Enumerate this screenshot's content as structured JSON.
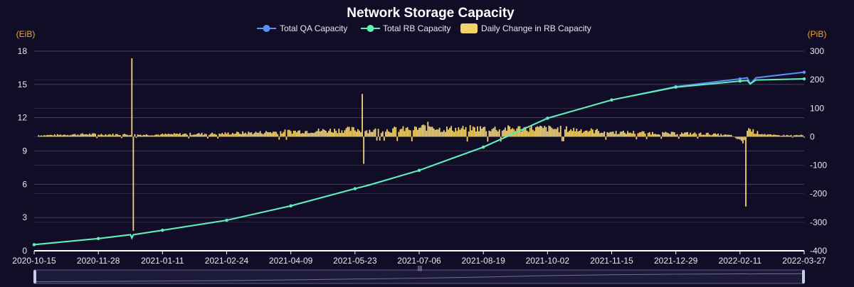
{
  "chart_data": {
    "type": "line",
    "title": "Network Storage Capacity",
    "y_left_unit": "(EiB)",
    "y_right_unit": "(PiB)",
    "y_left_range": [
      0,
      18
    ],
    "y_left_ticks": [
      0,
      3,
      6,
      9,
      12,
      15,
      18
    ],
    "y_right_range": [
      -400,
      300
    ],
    "y_right_ticks": [
      -400,
      -300,
      -200,
      -100,
      0,
      100,
      200,
      300
    ],
    "x_range": [
      "2020-10-15",
      "2022-03-27"
    ],
    "x_ticks": [
      "2020-10-15",
      "2020-11-28",
      "2021-01-11",
      "2021-02-24",
      "2021-04-09",
      "2021-05-23",
      "2021-07-06",
      "2021-08-19",
      "2021-10-02",
      "2021-11-15",
      "2021-12-29",
      "2022-02-11",
      "2022-03-27"
    ],
    "grid": true,
    "legend_position": "top-center",
    "colors": {
      "background": "#110d26",
      "qa": "#5b8ff9",
      "rb": "#5ff0b4",
      "daily": "#f4d26b",
      "unit_labels": "#f5a623",
      "grid": "#4d4a66"
    },
    "series": [
      {
        "name": "Total QA Capacity",
        "axis": "left",
        "kind": "line",
        "x": [
          "2020-10-15",
          "2020-11-28",
          "2020-12-20",
          "2020-12-21",
          "2020-12-22",
          "2021-01-11",
          "2021-02-24",
          "2021-04-09",
          "2021-05-23",
          "2021-06-01",
          "2021-07-06",
          "2021-08-19",
          "2021-10-02",
          "2021-11-15",
          "2021-12-29",
          "2022-02-11",
          "2022-02-16",
          "2022-02-18",
          "2022-02-22",
          "2022-03-27"
        ],
        "y": [
          0.55,
          1.1,
          1.45,
          1.15,
          1.45,
          1.85,
          2.75,
          4.05,
          5.6,
          5.9,
          7.25,
          9.35,
          11.95,
          13.6,
          14.8,
          15.5,
          15.6,
          15.05,
          15.6,
          16.1
        ]
      },
      {
        "name": "Total RB Capacity",
        "axis": "left",
        "kind": "line",
        "x": [
          "2020-10-15",
          "2020-11-28",
          "2020-12-20",
          "2020-12-21",
          "2020-12-22",
          "2021-01-11",
          "2021-02-24",
          "2021-04-09",
          "2021-05-23",
          "2021-06-01",
          "2021-07-06",
          "2021-08-19",
          "2021-10-02",
          "2021-11-15",
          "2021-12-29",
          "2022-02-11",
          "2022-02-16",
          "2022-02-18",
          "2022-02-22",
          "2022-03-27"
        ],
        "y": [
          0.55,
          1.1,
          1.45,
          1.15,
          1.45,
          1.85,
          2.75,
          4.05,
          5.6,
          5.9,
          7.25,
          9.35,
          11.95,
          13.6,
          14.75,
          15.3,
          15.35,
          15.05,
          15.4,
          15.5
        ]
      },
      {
        "name": "Daily Change in RB Capacity",
        "axis": "right",
        "kind": "bar",
        "x": [
          "2020-10-20",
          "2020-11-05",
          "2020-11-20",
          "2020-12-05",
          "2020-12-21",
          "2020-12-22",
          "2021-01-05",
          "2021-01-20",
          "2021-02-05",
          "2021-02-20",
          "2021-03-05",
          "2021-03-20",
          "2021-04-05",
          "2021-04-20",
          "2021-05-05",
          "2021-05-20",
          "2021-05-28",
          "2021-05-29",
          "2021-06-05",
          "2021-06-20",
          "2021-07-05",
          "2021-07-15",
          "2021-07-20",
          "2021-08-05",
          "2021-08-20",
          "2021-09-05",
          "2021-09-20",
          "2021-10-05",
          "2021-10-20",
          "2021-11-05",
          "2021-11-20",
          "2021-12-05",
          "2021-12-20",
          "2022-01-05",
          "2022-01-20",
          "2022-02-05",
          "2022-02-14",
          "2022-02-15",
          "2022-02-16",
          "2022-02-22",
          "2022-03-05",
          "2022-03-20"
        ],
        "y": [
          5,
          7,
          9,
          8,
          275,
          -330,
          7,
          9,
          10,
          11,
          13,
          15,
          18,
          20,
          22,
          25,
          150,
          -95,
          22,
          25,
          28,
          40,
          27,
          28,
          29,
          28,
          30,
          28,
          25,
          20,
          15,
          15,
          12,
          12,
          10,
          5,
          -20,
          -245,
          30,
          15,
          5,
          5
        ]
      }
    ]
  }
}
